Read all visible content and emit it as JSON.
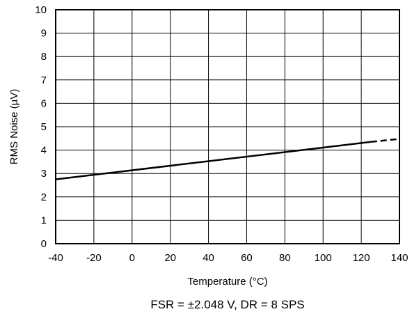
{
  "chart_data": {
    "type": "line",
    "xlabel": "Temperature (°C)",
    "ylabel": "RMS Noise (µV)",
    "caption": "FSR = ±2.048 V, DR = 8 SPS",
    "xlim": [
      -40,
      140
    ],
    "ylim": [
      0,
      10
    ],
    "x_ticks": [
      "-40",
      "-20",
      "0",
      "20",
      "40",
      "60",
      "80",
      "100",
      "120",
      "140"
    ],
    "y_ticks": [
      "0",
      "1",
      "2",
      "3",
      "4",
      "5",
      "6",
      "7",
      "8",
      "9",
      "10"
    ],
    "grid": true,
    "series": [
      {
        "style": "solid",
        "color": "#000000",
        "x": [
          -40,
          125
        ],
        "y": [
          2.75,
          4.35
        ]
      },
      {
        "style": "dashed",
        "color": "#000000",
        "x": [
          125,
          140
        ],
        "y": [
          4.35,
          4.48
        ]
      }
    ]
  }
}
